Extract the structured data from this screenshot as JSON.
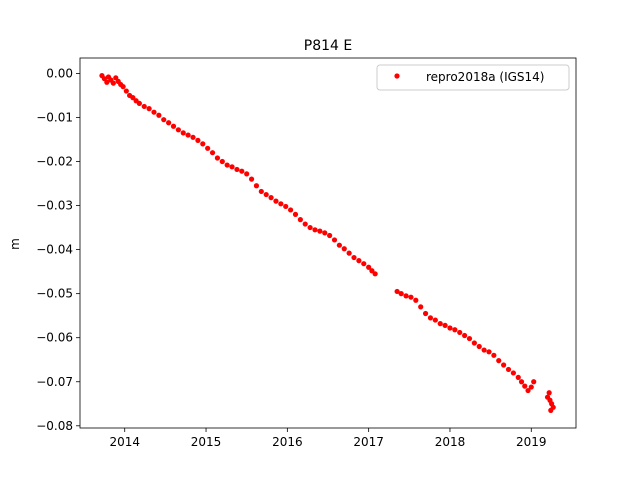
{
  "chart_data": {
    "type": "scatter",
    "title": "P814 E",
    "xlabel": "",
    "ylabel": "m",
    "xlim": [
      2013.45,
      2019.55
    ],
    "ylim": [
      -0.0805,
      0.0035
    ],
    "xticks": [
      2014,
      2015,
      2016,
      2017,
      2018,
      2019
    ],
    "xtick_labels": [
      "2014",
      "2015",
      "2016",
      "2017",
      "2018",
      "2019"
    ],
    "yticks": [
      0.0,
      -0.01,
      -0.02,
      -0.03,
      -0.04,
      -0.05,
      -0.06,
      -0.07,
      -0.08
    ],
    "ytick_labels": [
      "0.00",
      "−0.01",
      "−0.02",
      "−0.03",
      "−0.04",
      "−0.05",
      "−0.06",
      "−0.07",
      "−0.08"
    ],
    "grid": false,
    "legend_position": "top-right",
    "series": [
      {
        "name": "repro2018a (IGS14)",
        "color": "#ff0000",
        "marker": "dot",
        "points": [
          [
            2013.72,
            -0.0005
          ],
          [
            2013.75,
            -0.0012
          ],
          [
            2013.78,
            -0.002
          ],
          [
            2013.8,
            -0.0008
          ],
          [
            2013.83,
            -0.0015
          ],
          [
            2013.86,
            -0.0022
          ],
          [
            2013.89,
            -0.001
          ],
          [
            2013.92,
            -0.0018
          ],
          [
            2013.95,
            -0.0025
          ],
          [
            2013.98,
            -0.003
          ],
          [
            2014.02,
            -0.004
          ],
          [
            2014.06,
            -0.005
          ],
          [
            2014.1,
            -0.0055
          ],
          [
            2014.14,
            -0.0062
          ],
          [
            2014.18,
            -0.0068
          ],
          [
            2014.24,
            -0.0075
          ],
          [
            2014.3,
            -0.008
          ],
          [
            2014.36,
            -0.0088
          ],
          [
            2014.42,
            -0.0095
          ],
          [
            2014.48,
            -0.0105
          ],
          [
            2014.54,
            -0.0112
          ],
          [
            2014.6,
            -0.012
          ],
          [
            2014.66,
            -0.0128
          ],
          [
            2014.72,
            -0.0135
          ],
          [
            2014.78,
            -0.014
          ],
          [
            2014.84,
            -0.0145
          ],
          [
            2014.9,
            -0.0152
          ],
          [
            2014.96,
            -0.016
          ],
          [
            2015.02,
            -0.017
          ],
          [
            2015.08,
            -0.018
          ],
          [
            2015.14,
            -0.0192
          ],
          [
            2015.2,
            -0.02
          ],
          [
            2015.26,
            -0.0208
          ],
          [
            2015.32,
            -0.0212
          ],
          [
            2015.38,
            -0.0218
          ],
          [
            2015.44,
            -0.0222
          ],
          [
            2015.5,
            -0.0228
          ],
          [
            2015.56,
            -0.024
          ],
          [
            2015.62,
            -0.0255
          ],
          [
            2015.68,
            -0.0268
          ],
          [
            2015.74,
            -0.0275
          ],
          [
            2015.8,
            -0.0282
          ],
          [
            2015.86,
            -0.029
          ],
          [
            2015.92,
            -0.0296
          ],
          [
            2015.98,
            -0.0302
          ],
          [
            2016.04,
            -0.031
          ],
          [
            2016.1,
            -0.032
          ],
          [
            2016.16,
            -0.0332
          ],
          [
            2016.22,
            -0.0342
          ],
          [
            2016.28,
            -0.035
          ],
          [
            2016.34,
            -0.0355
          ],
          [
            2016.4,
            -0.0358
          ],
          [
            2016.46,
            -0.0362
          ],
          [
            2016.52,
            -0.0368
          ],
          [
            2016.58,
            -0.0378
          ],
          [
            2016.64,
            -0.039
          ],
          [
            2016.7,
            -0.0398
          ],
          [
            2016.76,
            -0.0408
          ],
          [
            2016.82,
            -0.0418
          ],
          [
            2016.88,
            -0.0425
          ],
          [
            2016.94,
            -0.0432
          ],
          [
            2017.0,
            -0.044
          ],
          [
            2017.04,
            -0.0448
          ],
          [
            2017.08,
            -0.0455
          ],
          [
            2017.35,
            -0.0495
          ],
          [
            2017.4,
            -0.05
          ],
          [
            2017.46,
            -0.0505
          ],
          [
            2017.52,
            -0.0508
          ],
          [
            2017.58,
            -0.0515
          ],
          [
            2017.64,
            -0.053
          ],
          [
            2017.7,
            -0.0545
          ],
          [
            2017.76,
            -0.0555
          ],
          [
            2017.82,
            -0.056
          ],
          [
            2017.88,
            -0.0568
          ],
          [
            2017.94,
            -0.0572
          ],
          [
            2018.0,
            -0.0578
          ],
          [
            2018.06,
            -0.0582
          ],
          [
            2018.12,
            -0.0588
          ],
          [
            2018.18,
            -0.0595
          ],
          [
            2018.24,
            -0.0602
          ],
          [
            2018.3,
            -0.0612
          ],
          [
            2018.36,
            -0.062
          ],
          [
            2018.42,
            -0.0628
          ],
          [
            2018.48,
            -0.0632
          ],
          [
            2018.54,
            -0.064
          ],
          [
            2018.6,
            -0.0652
          ],
          [
            2018.66,
            -0.0662
          ],
          [
            2018.72,
            -0.0672
          ],
          [
            2018.78,
            -0.068
          ],
          [
            2018.84,
            -0.069
          ],
          [
            2018.88,
            -0.07
          ],
          [
            2018.92,
            -0.071
          ],
          [
            2018.96,
            -0.072
          ],
          [
            2019.0,
            -0.0712
          ],
          [
            2019.03,
            -0.07
          ],
          [
            2019.2,
            -0.0735
          ],
          [
            2019.23,
            -0.0742
          ],
          [
            2019.25,
            -0.075
          ],
          [
            2019.27,
            -0.0758
          ],
          [
            2019.22,
            -0.0725
          ],
          [
            2019.24,
            -0.0765
          ]
        ]
      }
    ]
  }
}
